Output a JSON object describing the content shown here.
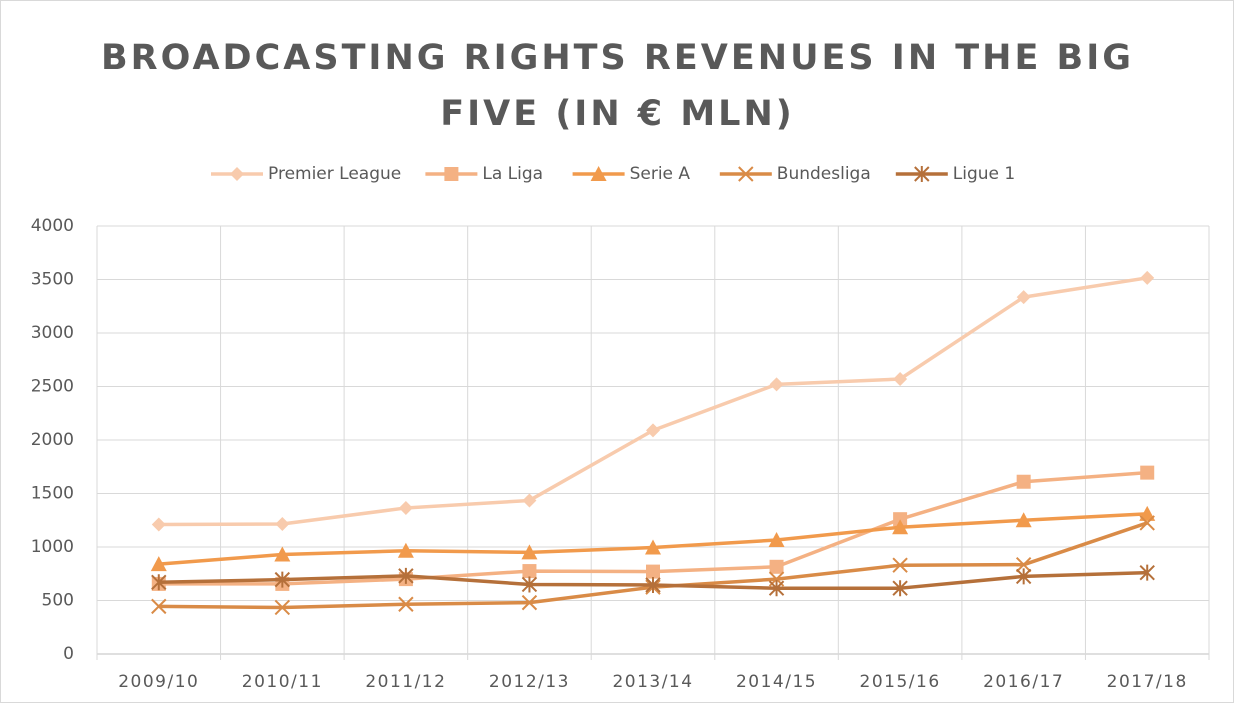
{
  "chart_data": {
    "type": "line",
    "title": "BROADCASTING RIGHTS REVENUES IN THE BIG FIVE (IN € MLN)",
    "categories": [
      "2009/10",
      "2010/11",
      "2011/12",
      "2012/13",
      "2013/14",
      "2014/15",
      "2015/16",
      "2016/17",
      "2017/18"
    ],
    "series": [
      {
        "name": "Premier League",
        "color": "#f8cbad",
        "marker": "diamond",
        "values": [
          1210,
          1215,
          1365,
          1435,
          2090,
          2520,
          2570,
          3335,
          3515
        ]
      },
      {
        "name": "La Liga",
        "color": "#f4b183",
        "marker": "square",
        "values": [
          655,
          655,
          700,
          775,
          770,
          815,
          1260,
          1610,
          1695
        ]
      },
      {
        "name": "Serie A",
        "color": "#f19a4c",
        "marker": "triangle",
        "values": [
          840,
          930,
          965,
          950,
          995,
          1065,
          1185,
          1250,
          1310
        ]
      },
      {
        "name": "Bundesliga",
        "color": "#d98b47",
        "marker": "x",
        "values": [
          445,
          435,
          465,
          480,
          625,
          700,
          830,
          835,
          1225
        ]
      },
      {
        "name": "Ligue 1",
        "color": "#b5703a",
        "marker": "star",
        "values": [
          670,
          695,
          730,
          650,
          645,
          615,
          615,
          725,
          760
        ]
      }
    ],
    "ylim": [
      0,
      4000
    ],
    "yticks": [
      0,
      500,
      1000,
      1500,
      2000,
      2500,
      3000,
      3500,
      4000
    ],
    "grid": true,
    "legend": "top"
  }
}
